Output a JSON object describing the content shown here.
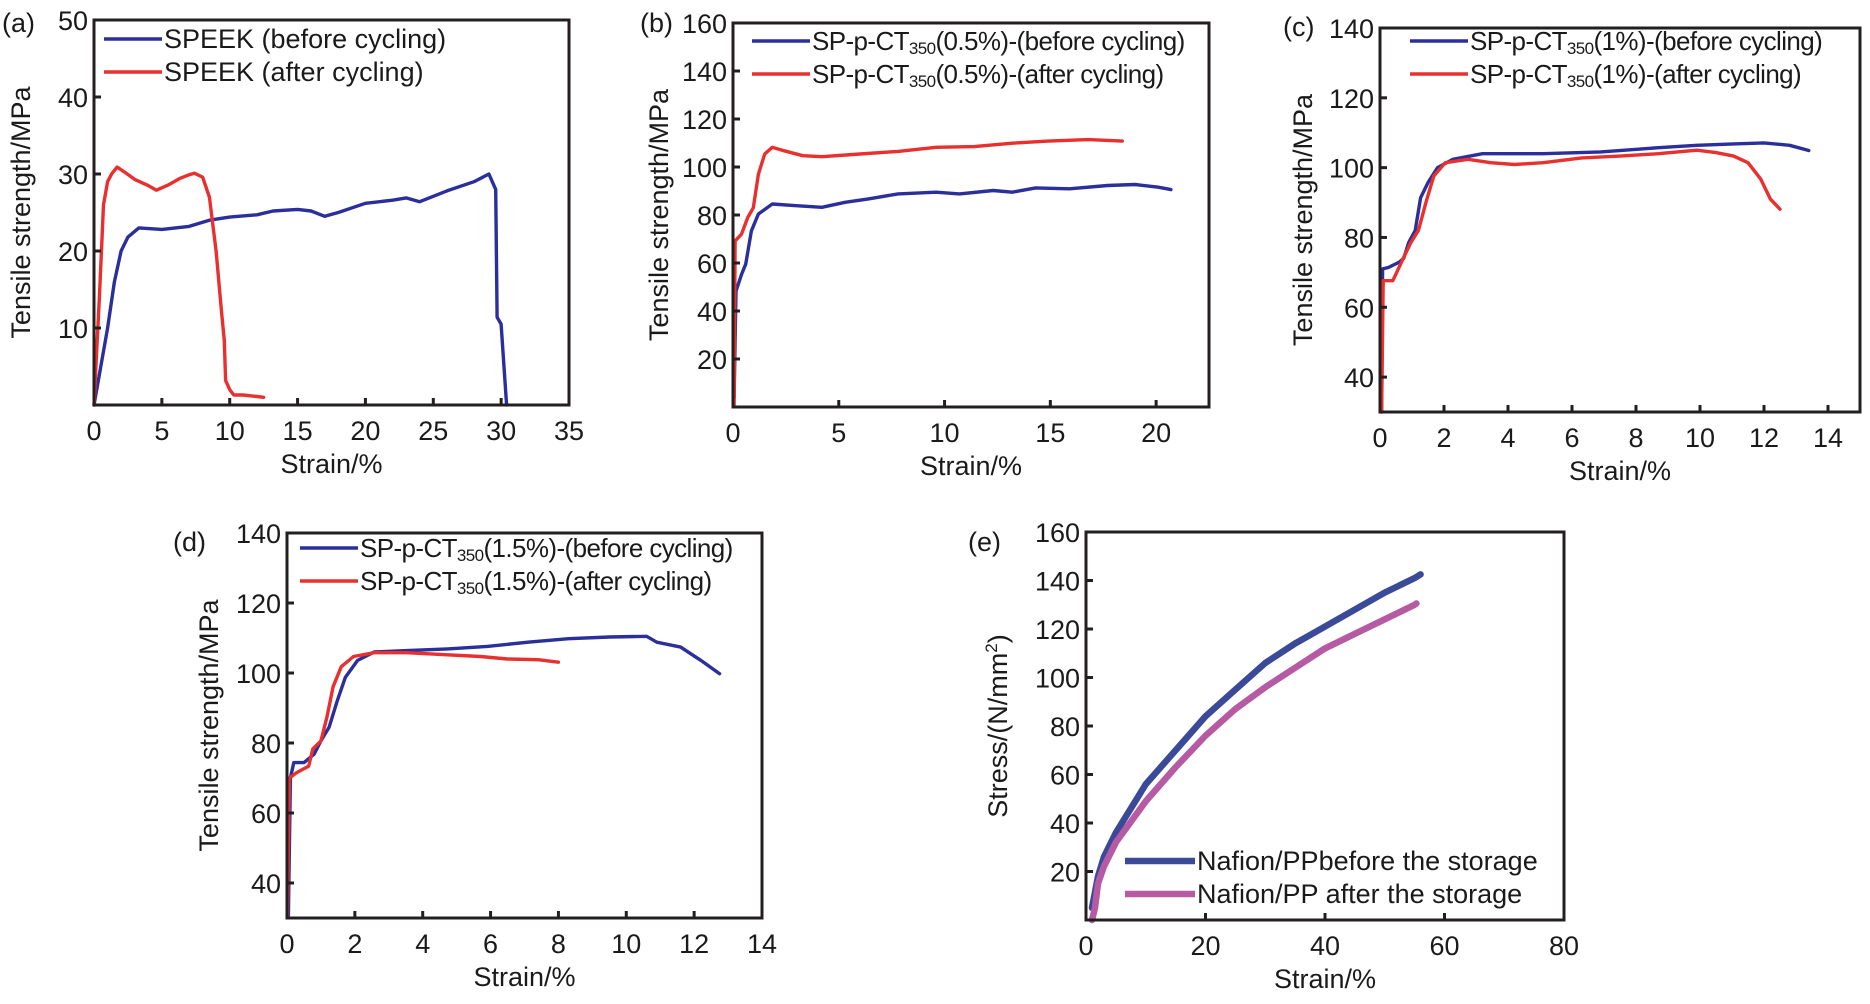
{
  "colors": {
    "blue": "#2b2f9b",
    "red": "#e8302e",
    "navy": "#3b4a98",
    "magenta": "#b65aa4",
    "axis": "#231f20"
  },
  "chart_data": [
    {
      "panel": "(a)",
      "type": "line",
      "title": "",
      "xlabel": "Strain/%",
      "ylabel": "Tensile strength/MPa",
      "xlim": [
        0,
        35
      ],
      "ylim": [
        0,
        50
      ],
      "xticks": [
        0,
        5,
        10,
        15,
        20,
        25,
        30,
        35
      ],
      "yticks": [
        10,
        20,
        30,
        40,
        50
      ],
      "grid": false,
      "legend_position": "top-left",
      "series": [
        {
          "name": "SPEEK (before cycling)",
          "name_main": "SPEEK (before cycling)",
          "name_sub": "",
          "name_tail": "",
          "color_key": "blue",
          "x": [
            0,
            0.5,
            1.0,
            1.5,
            2.0,
            2.5,
            3.3,
            5,
            7,
            8.5,
            10,
            12,
            13.2,
            15,
            16,
            17,
            18,
            20,
            22,
            23,
            24,
            26,
            28,
            29.1,
            29.6,
            29.7,
            30.0,
            30.4
          ],
          "y": [
            0,
            5,
            10,
            16,
            20,
            21.8,
            23,
            22.8,
            23.2,
            24,
            24.4,
            24.7,
            25.2,
            25.4,
            25.2,
            24.5,
            25,
            26.2,
            26.6,
            26.9,
            26.4,
            27.8,
            29,
            30,
            28,
            11.4,
            10.5,
            0
          ]
        },
        {
          "name": "SPEEK (after cycling)",
          "name_main": "SPEEK (after cycling)",
          "name_sub": "",
          "name_tail": "",
          "color_key": "red",
          "x": [
            0,
            0.4,
            0.7,
            1.0,
            1.3,
            1.7,
            2.3,
            3.0,
            4.0,
            4.6,
            5.5,
            6.3,
            7.0,
            7.4,
            8.0,
            8.5,
            9.0,
            9.4,
            9.6,
            9.7,
            10.0,
            10.3,
            11.0,
            12.0,
            12.5
          ],
          "y": [
            0,
            14,
            26,
            29,
            30,
            30.9,
            30.2,
            29.3,
            28.5,
            27.9,
            28.6,
            29.4,
            29.9,
            30.1,
            29.6,
            27,
            20,
            12,
            8.4,
            3.2,
            2,
            1.3,
            1.3,
            1.1,
            1.0
          ]
        }
      ]
    },
    {
      "panel": "(b)",
      "type": "line",
      "title": "",
      "xlabel": "Strain/%",
      "ylabel": "Tensile strength/MPa",
      "xlim": [
        0,
        22.5
      ],
      "ylim": [
        0,
        160
      ],
      "xticks": [
        0,
        5,
        10,
        15,
        20
      ],
      "yticks": [
        20,
        40,
        60,
        80,
        100,
        120,
        140,
        160
      ],
      "grid": false,
      "legend_position": "top-right",
      "series": [
        {
          "name": "SP-p-CT350(0.5%)-(before cycling)",
          "name_main": "SP-p-CT",
          "name_sub": "350",
          "name_tail": "(0.5%)-(before cycling)",
          "color_key": "blue",
          "x": [
            0.05,
            0.14,
            0.4,
            0.6,
            0.87,
            1.2,
            1.86,
            2.9,
            4.2,
            5.3,
            6.4,
            7.8,
            9.6,
            10.7,
            12.3,
            13.2,
            14.3,
            15.9,
            17.7,
            19.0,
            20.1,
            20.7
          ],
          "y": [
            3.8,
            48.3,
            55.2,
            59.5,
            73.4,
            80.4,
            84.6,
            83.9,
            83.2,
            85.3,
            86.7,
            88.8,
            89.5,
            88.8,
            90.2,
            89.5,
            91.3,
            90.9,
            92.3,
            92.7,
            91.6,
            90.6
          ]
        },
        {
          "name": "SP-p-CT350(0.5%)-(after cycling)",
          "name_main": "SP-p-CT",
          "name_sub": "350",
          "name_tail": "(0.5%)-(after cycling)",
          "color_key": "red",
          "x": [
            0.05,
            0.1,
            0.4,
            0.7,
            0.96,
            1.2,
            1.5,
            1.86,
            2.4,
            3.3,
            4.2,
            6.0,
            7.8,
            9.6,
            11.4,
            13.2,
            14.9,
            16.8,
            18.4
          ],
          "y": [
            1,
            69.2,
            72,
            79,
            83,
            97,
            105.4,
            108.2,
            106.8,
            104.7,
            104.3,
            105.4,
            106.5,
            108.2,
            108.5,
            109.9,
            110.8,
            111.4,
            110.8
          ]
        }
      ]
    },
    {
      "panel": "(c)",
      "type": "line",
      "title": "",
      "xlabel": "Strain/%",
      "ylabel": "Tensile strength/MPa",
      "xlim": [
        0,
        15
      ],
      "ylim": [
        30,
        140
      ],
      "xticks": [
        0,
        2,
        4,
        6,
        8,
        10,
        12,
        14
      ],
      "yticks": [
        40,
        60,
        80,
        100,
        120,
        140
      ],
      "grid": false,
      "legend_position": "top-right",
      "series": [
        {
          "name": "SP-p-CT350(1%)-(before cycling)",
          "name_main": "SP-p-CT",
          "name_sub": "350",
          "name_tail": "(1%)-(before cycling)",
          "color_key": "blue",
          "x": [
            0.05,
            0.08,
            0.26,
            0.6,
            0.74,
            0.9,
            1.1,
            1.27,
            1.5,
            1.8,
            2.28,
            3.2,
            5.1,
            6.9,
            8.7,
            9.9,
            11.05,
            12.0,
            12.8,
            13.4
          ],
          "y": [
            30,
            71,
            71.4,
            72.9,
            74,
            78.6,
            82,
            91.4,
            95.7,
            100,
            102.4,
            104,
            104,
            104.5,
            105.7,
            106.4,
            106.8,
            107.1,
            106.4,
            104.9
          ]
        },
        {
          "name": "SP-p-CT350(1%)-(after cycling)",
          "name_main": "SP-p-CT",
          "name_sub": "350",
          "name_tail": "(1%)-(after cycling)",
          "color_key": "red",
          "x": [
            0.05,
            0.1,
            0.4,
            0.74,
            0.97,
            1.2,
            1.45,
            1.68,
            2.04,
            2.75,
            3.46,
            4.2,
            5.1,
            6.3,
            7.5,
            8.7,
            9.9,
            10.5,
            11.05,
            11.5,
            11.9,
            12.2,
            12.5
          ],
          "y": [
            30,
            67.6,
            67.6,
            74.3,
            78.6,
            82,
            90.5,
            97.6,
            101.4,
            102.4,
            101.4,
            100.9,
            101.4,
            102.8,
            103.3,
            104,
            105,
            104.3,
            103.3,
            101.4,
            96.7,
            91,
            88.1
          ]
        }
      ]
    },
    {
      "panel": "(d)",
      "type": "line",
      "title": "",
      "xlabel": "Strain/%",
      "ylabel": "Tensile strength/MPa",
      "xlim": [
        0,
        14
      ],
      "ylim": [
        30,
        140
      ],
      "xticks": [
        0,
        2,
        4,
        6,
        8,
        10,
        12,
        14
      ],
      "yticks": [
        40,
        60,
        80,
        100,
        120,
        140
      ],
      "grid": false,
      "legend_position": "top-right",
      "series": [
        {
          "name": "SP-p-CT350(1.5%)-(before cycling)",
          "name_main": "SP-p-CT",
          "name_sub": "350",
          "name_tail": "(1.5%)-(before cycling)",
          "color_key": "blue",
          "x": [
            0.04,
            0.1,
            0.2,
            0.5,
            0.8,
            1.0,
            1.24,
            1.48,
            1.72,
            2.08,
            2.57,
            3.53,
            4.73,
            5.9,
            7.1,
            8.3,
            9.5,
            10.6,
            10.9,
            11.6,
            12.2,
            12.75
          ],
          "y": [
            30.8,
            70,
            74.4,
            74.4,
            76.8,
            80.6,
            84.5,
            92,
            98.8,
            103.6,
            106,
            106.4,
            106.9,
            107.6,
            108.8,
            109.8,
            110.3,
            110.5,
            108.8,
            107.4,
            103.6,
            99.8
          ]
        },
        {
          "name": "SP-p-CT350(1.5%)-(after cycling)",
          "name_main": "SP-p-CT",
          "name_sub": "350",
          "name_tail": "(1.5%)-(after cycling)",
          "color_key": "red",
          "x": [
            0.01,
            0.07,
            0.28,
            0.64,
            0.76,
            1.0,
            1.18,
            1.36,
            1.6,
            1.96,
            2.57,
            3.53,
            4.73,
            5.7,
            6.5,
            7.4,
            8.0
          ],
          "y": [
            30.8,
            70,
            71.5,
            73.4,
            78.3,
            80.6,
            87.5,
            96.1,
            101.8,
            104.7,
            105.8,
            105.8,
            105.2,
            104.7,
            104,
            103.8,
            103.1
          ]
        }
      ]
    },
    {
      "panel": "(e)",
      "type": "line",
      "title": "",
      "xlabel": "Strain/%",
      "ylabel": "Stress/(N/mm²)",
      "ylabel_main": "Stress/(N/mm",
      "ylabel_sup": "2",
      "ylabel_tail": ")",
      "xlim": [
        0,
        80
      ],
      "ylim": [
        0,
        160
      ],
      "xticks": [
        0,
        20,
        40,
        60,
        80
      ],
      "yticks": [
        20,
        40,
        60,
        80,
        100,
        120,
        140,
        160
      ],
      "grid": false,
      "legend_position": "bottom-right",
      "series": [
        {
          "name": "Nafion/PPbefore the storage",
          "name_main": "Nafion/PPbefore the storage",
          "name_sub": "",
          "name_tail": "",
          "color_key": "navy",
          "x": [
            1,
            2,
            3,
            5,
            10,
            15,
            20,
            25,
            30,
            35,
            40,
            45,
            50,
            55,
            56
          ],
          "y": [
            5,
            18,
            26,
            36,
            56,
            70,
            84,
            95,
            106,
            114,
            121,
            128,
            135,
            141,
            142.5
          ]
        },
        {
          "name": "Nafion/PP after the storage",
          "name_main": "Nafion/PP after the storage",
          "name_sub": "",
          "name_tail": "",
          "color_key": "magenta",
          "x": [
            1,
            1.5,
            2,
            3,
            5,
            10,
            15,
            20,
            25,
            30,
            35,
            40,
            45,
            50,
            55,
            55.3
          ],
          "y": [
            0,
            5,
            15,
            22,
            32,
            49,
            63,
            76,
            87,
            96,
            104,
            112,
            118,
            124,
            130,
            130.5
          ]
        }
      ]
    }
  ]
}
